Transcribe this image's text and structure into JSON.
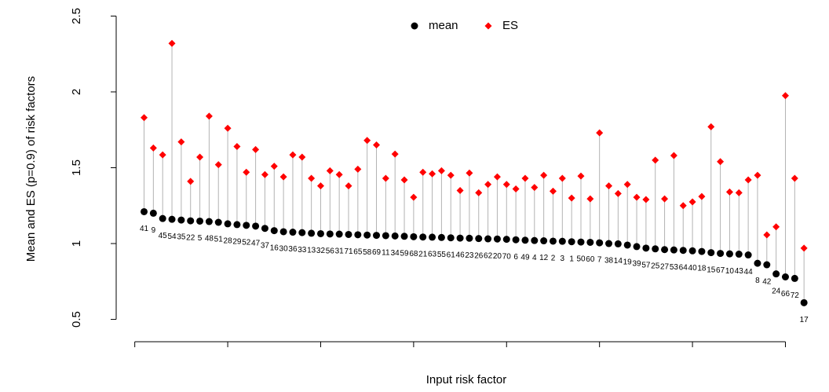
{
  "chart_data": {
    "type": "lollipop",
    "x_label": "Input risk factor",
    "y_label": "Mean and ES (p=0.9) of risk factors",
    "categories": [
      "41",
      "9",
      "45",
      "54",
      "35",
      "22",
      "5",
      "48",
      "51",
      "28",
      "29",
      "52",
      "47",
      "37",
      "16",
      "30",
      "36",
      "33",
      "13",
      "32",
      "56",
      "31",
      "71",
      "65",
      "58",
      "69",
      "11",
      "34",
      "59",
      "68",
      "21",
      "63",
      "55",
      "61",
      "46",
      "23",
      "26",
      "62",
      "20",
      "70",
      "6",
      "49",
      "4",
      "12",
      "2",
      "3",
      "1",
      "50",
      "60",
      "7",
      "38",
      "14",
      "19",
      "39",
      "57",
      "25",
      "27",
      "53",
      "64",
      "40",
      "18",
      "15",
      "67",
      "10",
      "43",
      "44",
      "8",
      "42",
      "24",
      "66",
      "72",
      "17"
    ],
    "series": [
      {
        "name": "mean",
        "color": "#000000",
        "values": [
          1.21,
          1.2,
          1.165,
          1.16,
          1.155,
          1.15,
          1.148,
          1.145,
          1.14,
          1.13,
          1.125,
          1.12,
          1.115,
          1.1,
          1.085,
          1.078,
          1.075,
          1.072,
          1.068,
          1.065,
          1.063,
          1.062,
          1.06,
          1.058,
          1.056,
          1.054,
          1.052,
          1.05,
          1.048,
          1.045,
          1.043,
          1.042,
          1.04,
          1.038,
          1.036,
          1.035,
          1.033,
          1.031,
          1.03,
          1.028,
          1.025,
          1.022,
          1.02,
          1.018,
          1.016,
          1.015,
          1.012,
          1.01,
          1.008,
          1.005,
          1.0,
          0.998,
          0.99,
          0.98,
          0.97,
          0.965,
          0.96,
          0.958,
          0.955,
          0.952,
          0.948,
          0.94,
          0.935,
          0.932,
          0.93,
          0.925,
          0.87,
          0.86,
          0.8,
          0.78,
          0.77,
          0.61
        ]
      },
      {
        "name": "ES",
        "color": "#ff0000",
        "values": [
          1.83,
          1.63,
          1.585,
          2.32,
          1.67,
          1.41,
          1.57,
          1.84,
          1.52,
          1.76,
          1.64,
          1.47,
          1.62,
          1.455,
          1.51,
          1.44,
          1.585,
          1.57,
          1.43,
          1.38,
          1.48,
          1.455,
          1.38,
          1.49,
          1.68,
          1.65,
          1.43,
          1.59,
          1.42,
          1.305,
          1.47,
          1.46,
          1.48,
          1.45,
          1.35,
          1.465,
          1.335,
          1.39,
          1.44,
          1.39,
          1.36,
          1.43,
          1.37,
          1.45,
          1.345,
          1.43,
          1.3,
          1.445,
          1.295,
          1.73,
          1.38,
          1.33,
          1.39,
          1.305,
          1.29,
          1.55,
          1.295,
          1.58,
          1.25,
          1.275,
          1.31,
          1.77,
          1.54,
          1.34,
          1.335,
          1.42,
          1.45,
          1.057,
          1.11,
          1.975,
          1.43,
          0.97
        ]
      }
    ],
    "xlim": [
      -2,
      73
    ],
    "xticks": [
      0,
      10,
      20,
      30,
      40,
      50,
      60,
      70
    ],
    "ylim": [
      0.42,
      2.58
    ],
    "yticks": [
      0.5,
      1.0,
      1.5,
      2.0,
      2.5
    ],
    "segment_color": "#b3b3b3",
    "legend": "top"
  }
}
